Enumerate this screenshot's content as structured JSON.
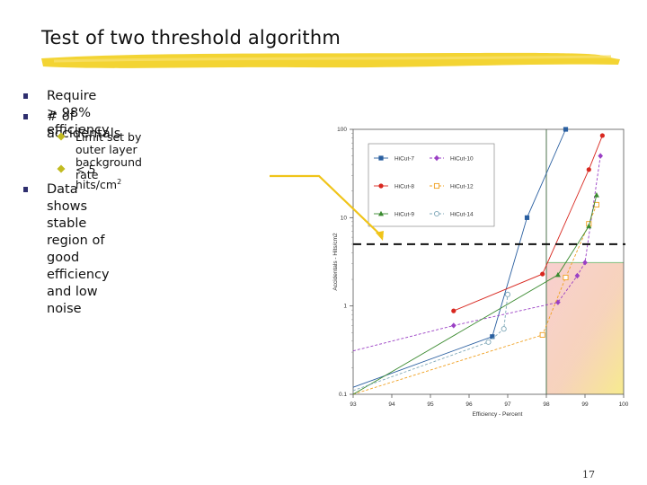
{
  "slide": {
    "title": "Test of two threshold algorithm",
    "page_number": "17"
  },
  "bullets": [
    {
      "text": "Require > 98% efficiency",
      "level": 1
    },
    {
      "text": "# of accidentals",
      "level": 1
    },
    {
      "text": "Limit set by outer layer background",
      "text2": "rate",
      "level": 2
    },
    {
      "text": "< 5 hits/cm",
      "sup": "2",
      "level": 2
    },
    {
      "text": "Data shows stable region of good",
      "text2": "efficiency and low noise",
      "level": 1
    }
  ],
  "colors": {
    "bullet_square": "#2e2e6e",
    "bullet_diamond": "#c2bb20",
    "underline": "#f2cf1d",
    "callout": "#f0c419"
  },
  "chart_data": {
    "type": "line",
    "xlabel": "Efficiency - Percent",
    "ylabel": "Accidentals - Hits/cm2",
    "xlim": [
      93,
      100
    ],
    "ylim": [
      0.1,
      100
    ],
    "y_scale": "log",
    "x_ticks": [
      "93",
      "94",
      "95",
      "96",
      "97",
      "98",
      "99",
      "100"
    ],
    "y_ticks": [
      "0.1",
      "1",
      "10",
      "100"
    ],
    "legend_placement": "upper-left",
    "threshold_y": 5,
    "good_region": {
      "x_min": 98,
      "y_max": 3.1
    },
    "series": [
      {
        "name": "HiCut-7",
        "color": "#2a5fa0",
        "marker": "square",
        "points": [
          [
            93.0,
            0.12
          ],
          [
            96.6,
            0.45
          ],
          [
            97.5,
            10
          ],
          [
            98.5,
            100
          ]
        ]
      },
      {
        "name": "HiCut-10",
        "color": "#9a3fc4",
        "marker": "diamond",
        "points": [
          [
            93.0,
            0.31
          ],
          [
            95.6,
            0.6
          ],
          [
            98.3,
            1.1
          ],
          [
            98.8,
            2.2
          ],
          [
            99.0,
            3.1
          ],
          [
            99.4,
            50
          ]
        ]
      },
      {
        "name": "HiCut-8",
        "color": "#d8271f",
        "marker": "circle",
        "points": [
          [
            95.6,
            0.88
          ],
          [
            97.9,
            2.3
          ],
          [
            99.1,
            35
          ],
          [
            99.45,
            85
          ]
        ]
      },
      {
        "name": "HiCut-12",
        "color": "#f0a020",
        "marker": "square-open",
        "points": [
          [
            93.0,
            0.1
          ],
          [
            97.9,
            0.47
          ],
          [
            98.5,
            2.1
          ],
          [
            99.1,
            8.5
          ],
          [
            99.3,
            14
          ]
        ]
      },
      {
        "name": "HiCut-9",
        "color": "#3a8a2f",
        "marker": "triangle",
        "points": [
          [
            93.0,
            0.1
          ],
          [
            98.3,
            2.25
          ],
          [
            99.1,
            8.0
          ],
          [
            99.3,
            18
          ]
        ]
      },
      {
        "name": "HiCut-14",
        "color": "#7fa8b8",
        "marker": "circle-open",
        "points": [
          [
            93.0,
            0.11
          ],
          [
            96.5,
            0.39
          ],
          [
            96.9,
            0.55
          ],
          [
            97.0,
            1.35
          ]
        ]
      }
    ]
  }
}
